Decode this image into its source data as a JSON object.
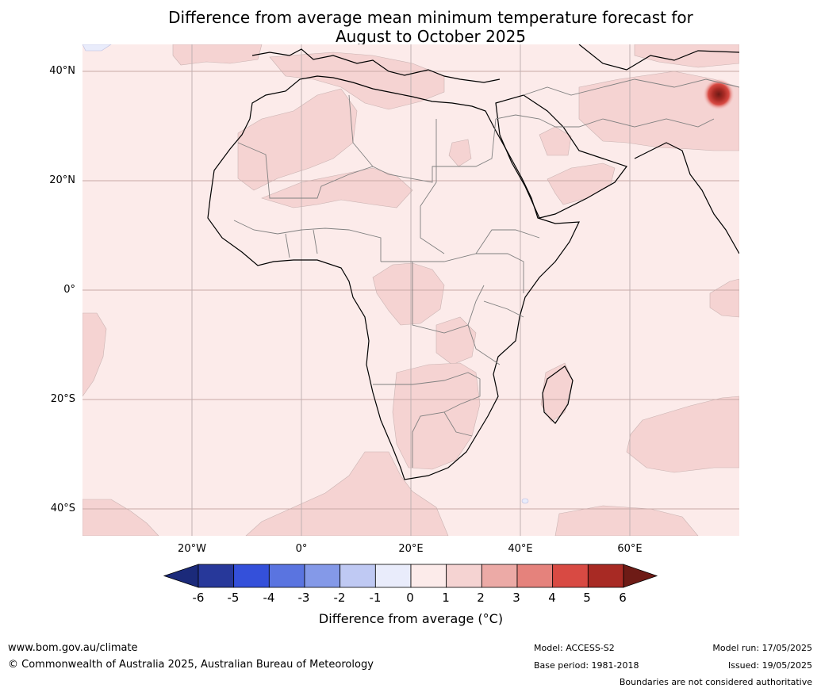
{
  "title_line1": "Difference from average mean minimum temperature forecast for",
  "title_line2": "August to October 2025",
  "lat_labels": [
    "40°N",
    "20°N",
    "0°",
    "20°S",
    "40°S"
  ],
  "lon_labels": [
    "20°W",
    "0°",
    "20°E",
    "40°E",
    "60°E"
  ],
  "colorbar": {
    "ticks": [
      "-6",
      "-5",
      "-4",
      "-3",
      "-2",
      "-1",
      "0",
      "1",
      "2",
      "3",
      "4",
      "5",
      "6"
    ],
    "label": "Difference from average (°C)",
    "colors": [
      "#27389a",
      "#3450da",
      "#5a74e0",
      "#8499e8",
      "#bfc9f3",
      "#e9ecfb",
      "#fcebea",
      "#f5d3d2",
      "#ecaaa6",
      "#e5827c",
      "#d84a43",
      "#a82a24"
    ],
    "under_color": "#1b2a7a",
    "over_color": "#6e1b16"
  },
  "footer": {
    "url": "www.bom.gov.au/climate",
    "copyright": "© Commonwealth of Australia 2025, Australian Bureau of Meteorology",
    "model": "Model: ACCESS-S2",
    "base_period": "Base period: 1981-2018",
    "model_run": "Model run: 17/05/2025",
    "issued": "Issued: 19/05/2025",
    "disclaimer": "Boundaries are not considered authoritative"
  }
}
